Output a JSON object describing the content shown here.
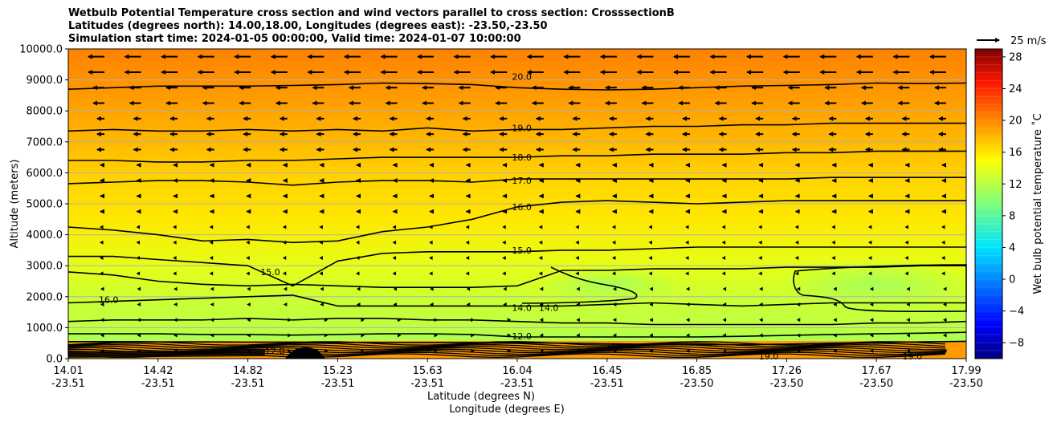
{
  "title_lines": [
    "Wetbulb Potential Temperature cross section and wind vectors parallel to cross section: CrosssectionB",
    "Latitudes (degrees north): 14.00,18.00, Longitudes (degrees east): -23.50,-23.50",
    "Simulation start time: 2024-01-05 00:00:00, Valid time: 2024-01-07 10:00:00"
  ],
  "chart_data": {
    "type": "contour",
    "ylabel": "Altitude (meters)",
    "xlabel_lat": "Latitude (degrees N)",
    "xlabel_lon": "Longitude (degrees E)",
    "ylim": [
      0,
      10000
    ],
    "y_ticks": [
      "0.0",
      "1000.0",
      "2000.0",
      "3000.0",
      "4000.0",
      "5000.0",
      "6000.0",
      "7000.0",
      "8000.0",
      "9000.0",
      "10000.0"
    ],
    "x_ticks": [
      {
        "lat": "14.01",
        "lon": "-23.51"
      },
      {
        "lat": "14.42",
        "lon": "-23.51"
      },
      {
        "lat": "14.82",
        "lon": "-23.51"
      },
      {
        "lat": "15.23",
        "lon": "-23.51"
      },
      {
        "lat": "15.63",
        "lon": "-23.51"
      },
      {
        "lat": "16.04",
        "lon": "-23.51"
      },
      {
        "lat": "16.45",
        "lon": "-23.51"
      },
      {
        "lat": "16.85",
        "lon": "-23.50"
      },
      {
        "lat": "17.26",
        "lon": "-23.50"
      },
      {
        "lat": "17.67",
        "lon": "-23.50"
      },
      {
        "lat": "17.99",
        "lon": "-23.50"
      }
    ],
    "grid": "horizontal",
    "colorbar": {
      "label": "Wet bulb potential temperature ˚C",
      "ticks": [
        "28",
        "24",
        "20",
        "16",
        "12",
        "8",
        "4",
        "0",
        "−4",
        "−8"
      ],
      "tick_values": [
        28,
        24,
        20,
        16,
        12,
        8,
        4,
        0,
        -4,
        -8
      ],
      "range": [
        -10,
        29
      ]
    },
    "quiver_key": "25 m/s",
    "contour_labels": [
      {
        "text": "20.0",
        "x": 0.505,
        "y": 9100
      },
      {
        "text": "19.0",
        "x": 0.505,
        "y": 7450
      },
      {
        "text": "18.0",
        "x": 0.505,
        "y": 6500
      },
      {
        "text": "17.0",
        "x": 0.505,
        "y": 5750
      },
      {
        "text": "16.0",
        "x": 0.505,
        "y": 4900
      },
      {
        "text": "15.0",
        "x": 0.505,
        "y": 3500
      },
      {
        "text": "14.0",
        "x": 0.505,
        "y": 1650
      },
      {
        "text": "14.0",
        "x": 0.535,
        "y": 1650
      },
      {
        "text": "12.0",
        "x": 0.505,
        "y": 720
      },
      {
        "text": "15.0",
        "x": 0.225,
        "y": 2800
      },
      {
        "text": "16.0",
        "x": 0.045,
        "y": 1900
      },
      {
        "text": "12.0",
        "x": 0.23,
        "y": 250
      },
      {
        "text": "19.0",
        "x": 0.78,
        "y": 80
      },
      {
        "text": "19.0",
        "x": 0.94,
        "y": 80
      }
    ],
    "contours": [
      {
        "level": 20,
        "y": [
          8700,
          8750,
          8800,
          8800,
          8800,
          8820,
          8850,
          8900,
          8880,
          8850,
          8750,
          8700,
          8680,
          8700,
          8750,
          8800,
          8820,
          8850,
          8900,
          8880,
          8900
        ]
      },
      {
        "level": 19,
        "y": [
          7350,
          7400,
          7350,
          7350,
          7400,
          7350,
          7400,
          7350,
          7450,
          7350,
          7400,
          7400,
          7450,
          7500,
          7500,
          7550,
          7550,
          7600,
          7600,
          7600,
          7600
        ]
      },
      {
        "level": 18,
        "y": [
          6400,
          6400,
          6350,
          6350,
          6400,
          6400,
          6450,
          6500,
          6500,
          6500,
          6500,
          6550,
          6550,
          6600,
          6600,
          6600,
          6650,
          6650,
          6700,
          6700,
          6700
        ]
      },
      {
        "level": 17,
        "y": [
          5650,
          5700,
          5750,
          5750,
          5700,
          5600,
          5700,
          5750,
          5750,
          5700,
          5800,
          5800,
          5800,
          5800,
          5800,
          5800,
          5800,
          5850,
          5850,
          5850,
          5850
        ]
      },
      {
        "level": 16,
        "y": [
          4250,
          4150,
          4000,
          3800,
          3850,
          3750,
          3800,
          4100,
          4250,
          4500,
          4900,
          5050,
          5100,
          5050,
          5000,
          5050,
          5100,
          5100,
          5100,
          5100,
          5100
        ]
      },
      {
        "level": 15,
        "y": [
          3300,
          3300,
          3200,
          3100,
          3000,
          2350,
          3150,
          3400,
          3450,
          3450,
          3450,
          3500,
          3500,
          3550,
          3600,
          3600,
          3600,
          3600,
          3600,
          3600,
          3600
        ]
      },
      {
        "level": 14.5,
        "y": [
          2800,
          2700,
          2500,
          2400,
          2350,
          2400,
          2350,
          2300,
          2300,
          2300,
          2350,
          2850,
          2850,
          2900,
          2900,
          2900,
          2950,
          2950,
          2950,
          3000,
          3000
        ]
      },
      {
        "level": 14,
        "y": [
          1800,
          1850,
          1900,
          1950,
          2000,
          2050,
          1700,
          1700,
          1700,
          1700,
          1700,
          1700,
          1750,
          1800,
          1750,
          1700,
          1750,
          1800,
          1800,
          1800,
          1800
        ]
      },
      {
        "level": 13,
        "y": [
          1200,
          1250,
          1250,
          1250,
          1300,
          1250,
          1300,
          1300,
          1250,
          1250,
          1200,
          1150,
          1150,
          1100,
          1100,
          1100,
          1100,
          1100,
          1150,
          1150,
          1200
        ]
      },
      {
        "level": 12,
        "y": [
          800,
          800,
          800,
          780,
          780,
          760,
          780,
          800,
          800,
          780,
          700,
          700,
          700,
          700,
          700,
          720,
          750,
          780,
          800,
          820,
          850
        ]
      },
      {
        "level": 11,
        "y": [
          550,
          550,
          540,
          540,
          530,
          530,
          520,
          520,
          520,
          520,
          510,
          500,
          480,
          460,
          450,
          450,
          470,
          500,
          520,
          540,
          560
        ]
      }
    ]
  },
  "colors": {
    "grid": "#b0b0b0",
    "contour": "#000000"
  }
}
